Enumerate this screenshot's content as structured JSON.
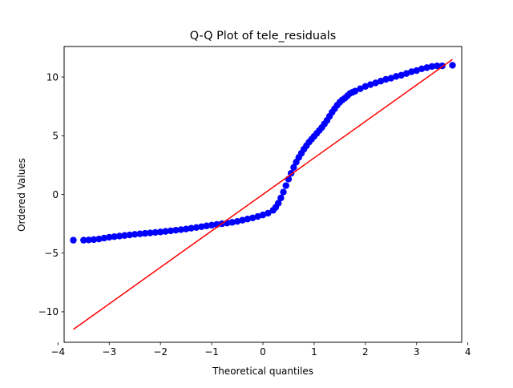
{
  "chart_data": {
    "type": "scatter",
    "title": "Q-Q Plot of tele_residuals",
    "xlabel": "Theoretical quantiles",
    "ylabel": "Ordered Values",
    "xlim": [
      -3.88,
      3.88
    ],
    "ylim": [
      -12.6,
      12.6
    ],
    "x_ticks": [
      -4,
      -3,
      -2,
      -1,
      0,
      1,
      2,
      3,
      4
    ],
    "x_tick_labels": [
      "−4",
      "−3",
      "−2",
      "−1",
      "0",
      "1",
      "2",
      "3",
      "4"
    ],
    "y_ticks": [
      -10,
      -5,
      0,
      5,
      10
    ],
    "y_tick_labels": [
      "−10",
      "−5",
      "0",
      "5",
      "10"
    ],
    "grid": false,
    "series": [
      {
        "kind": "points",
        "color": "#0000ff",
        "x": [
          -3.7,
          -3.5,
          -3.4,
          -3.3,
          -3.2,
          -3.1,
          -3.0,
          -2.9,
          -2.8,
          -2.7,
          -2.6,
          -2.5,
          -2.4,
          -2.3,
          -2.2,
          -2.1,
          -2.0,
          -1.9,
          -1.8,
          -1.7,
          -1.6,
          -1.5,
          -1.4,
          -1.3,
          -1.2,
          -1.1,
          -1.0,
          -0.9,
          -0.8,
          -0.7,
          -0.6,
          -0.5,
          -0.4,
          -0.3,
          -0.2,
          -0.1,
          0.0,
          0.1,
          0.2,
          0.25,
          0.3,
          0.35,
          0.4,
          0.45,
          0.5,
          0.55,
          0.6,
          0.65,
          0.7,
          0.75,
          0.8,
          0.85,
          0.9,
          0.95,
          1.0,
          1.05,
          1.1,
          1.15,
          1.2,
          1.25,
          1.3,
          1.35,
          1.4,
          1.45,
          1.5,
          1.55,
          1.6,
          1.65,
          1.7,
          1.75,
          1.8,
          1.9,
          2.0,
          2.1,
          2.2,
          2.3,
          2.4,
          2.5,
          2.6,
          2.7,
          2.8,
          2.9,
          3.0,
          3.1,
          3.2,
          3.3,
          3.4,
          3.5,
          3.7
        ],
        "y": [
          -3.9,
          -3.9,
          -3.88,
          -3.85,
          -3.8,
          -3.72,
          -3.65,
          -3.6,
          -3.55,
          -3.5,
          -3.45,
          -3.4,
          -3.36,
          -3.32,
          -3.28,
          -3.24,
          -3.2,
          -3.15,
          -3.1,
          -3.05,
          -3.0,
          -2.95,
          -2.88,
          -2.82,
          -2.75,
          -2.68,
          -2.62,
          -2.56,
          -2.5,
          -2.44,
          -2.38,
          -2.3,
          -2.2,
          -2.1,
          -2.0,
          -1.88,
          -1.75,
          -1.6,
          -1.35,
          -1.1,
          -0.75,
          -0.3,
          0.2,
          0.75,
          1.3,
          1.8,
          2.3,
          2.75,
          3.15,
          3.5,
          3.85,
          4.15,
          4.45,
          4.7,
          4.95,
          5.2,
          5.45,
          5.7,
          6.0,
          6.3,
          6.65,
          7.0,
          7.3,
          7.6,
          7.85,
          8.05,
          8.2,
          8.4,
          8.6,
          8.7,
          8.8,
          9.0,
          9.2,
          9.35,
          9.5,
          9.65,
          9.8,
          9.9,
          10.05,
          10.15,
          10.3,
          10.45,
          10.55,
          10.7,
          10.8,
          10.9,
          10.95,
          10.95,
          11.0
        ]
      },
      {
        "kind": "line",
        "color": "#ff0000",
        "x": [
          -3.7,
          3.7
        ],
        "y": [
          -11.5,
          11.5
        ]
      }
    ]
  }
}
